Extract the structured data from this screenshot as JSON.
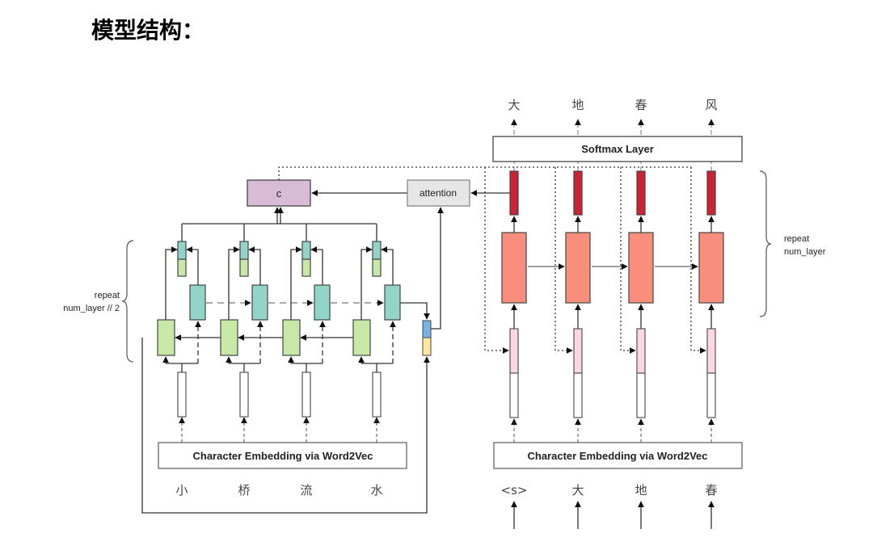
{
  "title": "模型结构：",
  "encoder": {
    "embedding_label": "Character Embedding via Word2Vec",
    "input_chars": [
      "小",
      "桥",
      "流",
      "水"
    ],
    "repeat_label": [
      "repeat",
      "num_layer // 2"
    ],
    "context_label": "c",
    "attention_label": "attention"
  },
  "decoder": {
    "softmax_label": "Softmax Layer",
    "embedding_label": "Character Embedding via Word2Vec",
    "output_chars": [
      "大",
      "地",
      "春",
      "风"
    ],
    "input_chars": [
      "<s>",
      "大",
      "地",
      "春"
    ],
    "repeat_label": [
      "repeat",
      "num_layer"
    ]
  },
  "colors": {
    "context": "#d8bcd6",
    "attention": "#e6e6e6",
    "forward_lstm": "#c8e8a8",
    "backward_lstm": "#92d5c8",
    "decoder_lstm": "#fa8e7c",
    "decoder_out": "#cc2233",
    "decoder_in": "#fcd6e2",
    "state_blue": "#7ab4e4",
    "state_yellow": "#fce8a0"
  }
}
